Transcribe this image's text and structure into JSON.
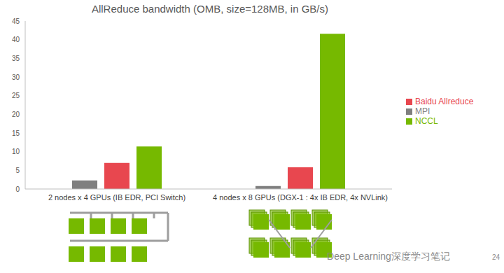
{
  "chart_data": {
    "type": "bar",
    "title": "AllReduce bandwidth (OMB, size=128MB, in GB/s)",
    "categories": [
      "2 nodes x 4 GPUs (IB EDR, PCI Switch)",
      "4 nodes x 8 GPUs (DGX-1 : 4x IB EDR, 4x NVLink)"
    ],
    "series": [
      {
        "name": "MPI",
        "color": "#7f7f7f",
        "values": [
          2.3,
          0.8
        ]
      },
      {
        "name": "Baidu Allreduce",
        "color": "#e8474f",
        "values": [
          7.0,
          5.8
        ]
      },
      {
        "name": "NCCL",
        "color": "#76b900",
        "values": [
          11.4,
          41.6
        ]
      }
    ],
    "ylim": [
      0,
      45
    ],
    "yticks": [
      0,
      5,
      10,
      15,
      20,
      25,
      30,
      35,
      40,
      45
    ],
    "grid": false,
    "legend": "right",
    "annotations": [
      "Deep Learning深度学习笔记",
      "24"
    ]
  }
}
